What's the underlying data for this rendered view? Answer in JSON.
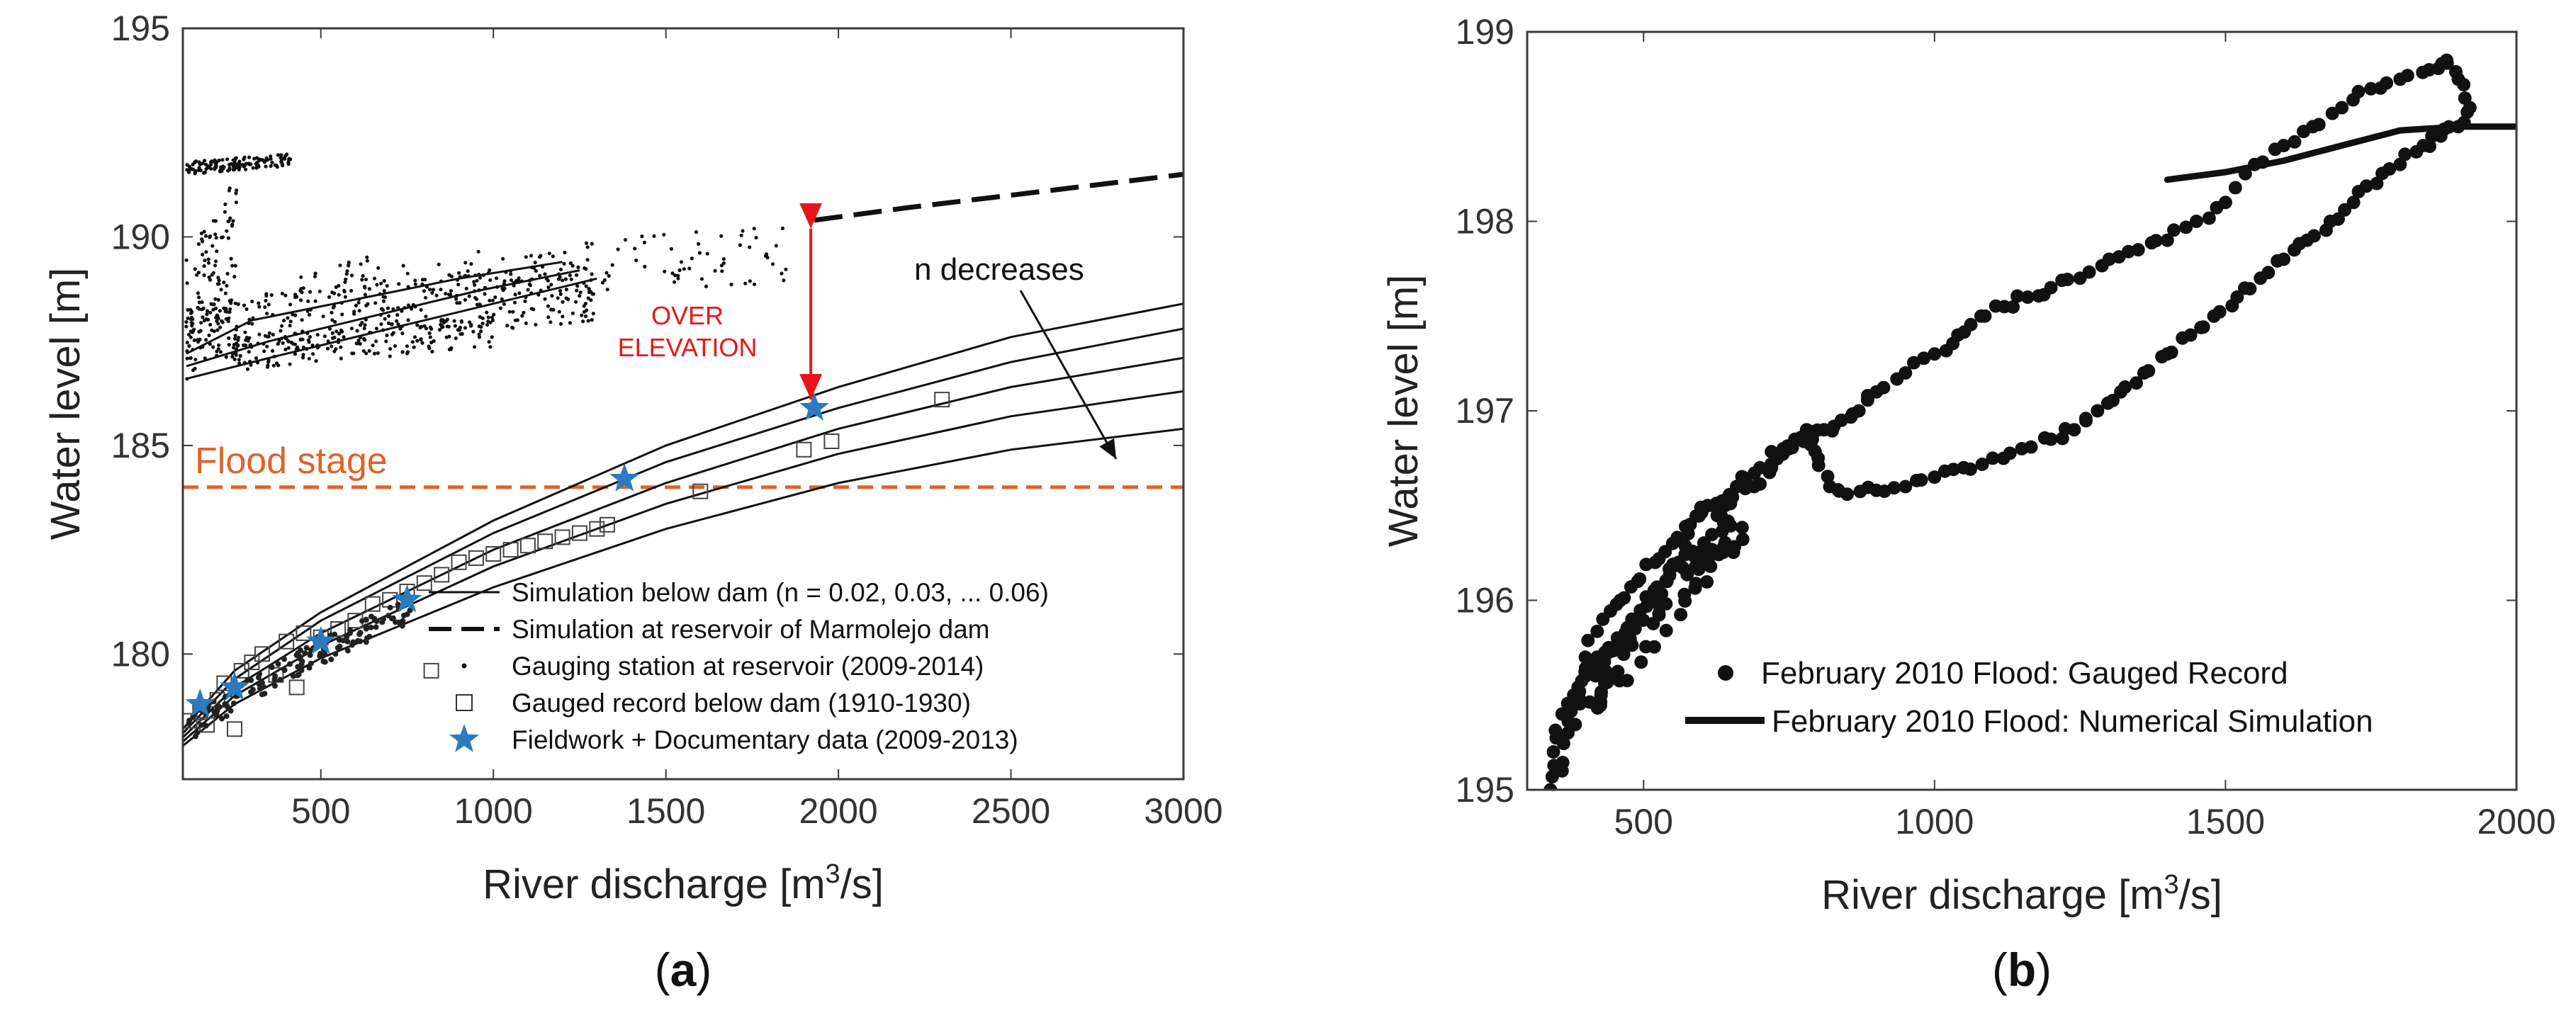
{
  "figure": {
    "panel_a_label_open": "(",
    "panel_a_label_letter": "a",
    "panel_a_label_close": ")",
    "panel_b_label_open": "(",
    "panel_b_label_letter": "b",
    "panel_b_label_close": ")"
  },
  "colors": {
    "flood_stage": "#e0622a",
    "overelevation": "#e8161b",
    "fieldwork_star": "#2a7bbf",
    "lines": "#111111",
    "axis": "#3a3a3a"
  },
  "chart_data": [
    {
      "type": "scatter",
      "title": "",
      "xlabel_prefix": "River discharge [m",
      "xlabel_sup": "3",
      "xlabel_suffix": "/s]",
      "ylabel": "Water level [m]",
      "xlim": [
        100,
        3000
      ],
      "ylim": [
        177,
        195
      ],
      "xticks": [
        500,
        1000,
        1500,
        2000,
        2500,
        3000
      ],
      "xtick_labels": [
        "500",
        "1000",
        "1500",
        "2000",
        "2500",
        "3000"
      ],
      "yticks": [
        180,
        185,
        190,
        195
      ],
      "ytick_labels": [
        "180",
        "185",
        "190",
        "195"
      ],
      "flood_stage": {
        "value": 184,
        "label": "Flood stage"
      },
      "annotations": {
        "overelevation_line1": "OVER",
        "overelevation_line2": "ELEVATION",
        "overelevation_x": 1920,
        "overelevation_from": 190.3,
        "overelevation_to": 186.0,
        "n_decreases": "n decreases"
      },
      "simulation_below_dam": [
        {
          "n": 0.02,
          "points": [
            [
              100,
              178.2
            ],
            [
              250,
              179.6
            ],
            [
              500,
              181.0
            ],
            [
              1000,
              183.2
            ],
            [
              1500,
              185.0
            ],
            [
              2000,
              186.4
            ],
            [
              2500,
              187.6
            ],
            [
              3000,
              188.4
            ]
          ]
        },
        {
          "n": 0.03,
          "points": [
            [
              100,
              178.1
            ],
            [
              250,
              179.4
            ],
            [
              500,
              180.8
            ],
            [
              1000,
              182.9
            ],
            [
              1500,
              184.6
            ],
            [
              2000,
              185.9
            ],
            [
              2500,
              187.0
            ],
            [
              3000,
              187.8
            ]
          ]
        },
        {
          "n": 0.04,
          "points": [
            [
              100,
              178.0
            ],
            [
              250,
              179.2
            ],
            [
              500,
              180.5
            ],
            [
              1000,
              182.5
            ],
            [
              1500,
              184.1
            ],
            [
              2000,
              185.4
            ],
            [
              2500,
              186.4
            ],
            [
              3000,
              187.1
            ]
          ]
        },
        {
          "n": 0.05,
          "points": [
            [
              100,
              177.9
            ],
            [
              250,
              179.0
            ],
            [
              500,
              180.2
            ],
            [
              1000,
              182.1
            ],
            [
              1500,
              183.6
            ],
            [
              2000,
              184.8
            ],
            [
              2500,
              185.7
            ],
            [
              3000,
              186.3
            ]
          ]
        },
        {
          "n": 0.06,
          "points": [
            [
              100,
              177.8
            ],
            [
              250,
              178.8
            ],
            [
              500,
              179.9
            ],
            [
              1000,
              181.6
            ],
            [
              1500,
              183.0
            ],
            [
              2000,
              184.1
            ],
            [
              2500,
              184.9
            ],
            [
              3000,
              185.4
            ]
          ]
        }
      ],
      "simulation_reservoir": [
        [
          1930,
          190.4
        ],
        [
          2200,
          190.7
        ],
        [
          2500,
          191.0
        ],
        [
          2800,
          191.3
        ],
        [
          3000,
          191.5
        ]
      ],
      "gauged_record_below_dam": [
        [
          120,
          178.4
        ],
        [
          150,
          178.6
        ],
        [
          170,
          178.3
        ],
        [
          200,
          178.9
        ],
        [
          220,
          179.3
        ],
        [
          250,
          178.2
        ],
        [
          270,
          179.6
        ],
        [
          300,
          179.8
        ],
        [
          330,
          180.0
        ],
        [
          370,
          179.5
        ],
        [
          400,
          180.3
        ],
        [
          430,
          179.2
        ],
        [
          450,
          180.5
        ],
        [
          500,
          180.4
        ],
        [
          550,
          180.6
        ],
        [
          600,
          180.8
        ],
        [
          650,
          181.2
        ],
        [
          700,
          181.3
        ],
        [
          750,
          181.5
        ],
        [
          800,
          181.7
        ],
        [
          820,
          179.6
        ],
        [
          850,
          181.9
        ],
        [
          900,
          182.2
        ],
        [
          950,
          182.3
        ],
        [
          1000,
          182.4
        ],
        [
          1050,
          182.5
        ],
        [
          1100,
          182.6
        ],
        [
          1150,
          182.7
        ],
        [
          1200,
          182.8
        ],
        [
          1250,
          182.9
        ],
        [
          1300,
          183.0
        ],
        [
          1330,
          183.1
        ],
        [
          1600,
          183.9
        ],
        [
          1900,
          184.9
        ],
        [
          1980,
          185.1
        ],
        [
          2300,
          186.1
        ]
      ],
      "fieldwork_documentary": [
        [
          150,
          178.8
        ],
        [
          250,
          179.2
        ],
        [
          500,
          180.3
        ],
        [
          750,
          181.3
        ],
        [
          1380,
          184.2
        ],
        [
          1930,
          185.9
        ]
      ],
      "legend": [
        {
          "label": "Simulation below dam (n = 0.02, 0.03, ... 0.06)",
          "style": "solid-line"
        },
        {
          "label": "Simulation at reservoir of Marmolejo dam",
          "style": "dashed-line"
        },
        {
          "label": "Gauging station at reservoir (2009-2014)",
          "style": "dot"
        },
        {
          "label": "Gauged record below dam (1910-1930)",
          "style": "open-square"
        },
        {
          "label": "Fieldwork + Documentary data (2009-2013)",
          "style": "blue-star"
        }
      ]
    },
    {
      "type": "scatter",
      "title": "",
      "xlabel_prefix": "River discharge [m",
      "xlabel_sup": "3",
      "xlabel_suffix": "/s]",
      "ylabel": "Water level [m]",
      "xlim": [
        300,
        2000
      ],
      "ylim": [
        195,
        199
      ],
      "xticks": [
        500,
        1000,
        1500,
        2000
      ],
      "xtick_labels": [
        "500",
        "1000",
        "1500",
        "2000"
      ],
      "yticks": [
        195,
        196,
        197,
        198,
        199
      ],
      "ytick_labels": [
        "195",
        "196",
        "197",
        "198",
        "199"
      ],
      "gauged_record": [
        [
          340,
          195.0
        ],
        [
          345,
          195.2
        ],
        [
          360,
          195.4
        ],
        [
          380,
          195.5
        ],
        [
          400,
          195.7
        ],
        [
          430,
          195.9
        ],
        [
          460,
          196.0
        ],
        [
          490,
          196.1
        ],
        [
          520,
          196.2
        ],
        [
          550,
          196.3
        ],
        [
          580,
          196.4
        ],
        [
          610,
          196.5
        ],
        [
          640,
          196.5
        ],
        [
          660,
          196.6
        ],
        [
          690,
          196.6
        ],
        [
          720,
          196.7
        ],
        [
          750,
          196.8
        ],
        [
          780,
          196.85
        ],
        [
          810,
          196.9
        ],
        [
          840,
          196.95
        ],
        [
          870,
          197.0
        ],
        [
          900,
          197.1
        ],
        [
          950,
          197.2
        ],
        [
          1000,
          197.3
        ],
        [
          1040,
          197.4
        ],
        [
          1080,
          197.5
        ],
        [
          1120,
          197.55
        ],
        [
          1160,
          197.6
        ],
        [
          1200,
          197.65
        ],
        [
          1250,
          197.7
        ],
        [
          1300,
          197.8
        ],
        [
          1350,
          197.85
        ],
        [
          1400,
          197.9
        ],
        [
          1450,
          198.0
        ],
        [
          1500,
          198.1
        ],
        [
          1550,
          198.3
        ],
        [
          1600,
          198.4
        ],
        [
          1650,
          198.5
        ],
        [
          1700,
          198.6
        ],
        [
          1750,
          198.7
        ],
        [
          1800,
          198.75
        ],
        [
          1850,
          198.8
        ],
        [
          1880,
          198.85
        ],
        [
          1900,
          198.75
        ],
        [
          1920,
          198.6
        ],
        [
          1900,
          198.5
        ],
        [
          1870,
          198.45
        ],
        [
          1840,
          198.4
        ],
        [
          1800,
          198.3
        ],
        [
          1760,
          198.2
        ],
        [
          1720,
          198.1
        ],
        [
          1680,
          198.0
        ],
        [
          1640,
          197.9
        ],
        [
          1600,
          197.8
        ],
        [
          1560,
          197.7
        ],
        [
          1520,
          197.6
        ],
        [
          1480,
          197.5
        ],
        [
          1440,
          197.4
        ],
        [
          1400,
          197.3
        ],
        [
          1360,
          197.2
        ],
        [
          1320,
          197.1
        ],
        [
          1280,
          197.0
        ],
        [
          1240,
          196.9
        ],
        [
          1200,
          196.85
        ],
        [
          1150,
          196.8
        ],
        [
          1100,
          196.75
        ],
        [
          1050,
          196.7
        ],
        [
          1000,
          196.65
        ],
        [
          950,
          196.6
        ],
        [
          900,
          196.58
        ],
        [
          850,
          196.56
        ],
        [
          820,
          196.6
        ],
        [
          800,
          196.75
        ],
        [
          790,
          196.85
        ],
        [
          780,
          196.9
        ],
        [
          760,
          196.85
        ],
        [
          740,
          196.8
        ],
        [
          700,
          196.7
        ],
        [
          660,
          196.6
        ],
        [
          620,
          196.5
        ],
        [
          580,
          196.4
        ],
        [
          560,
          196.2
        ],
        [
          540,
          196.1
        ],
        [
          510,
          196.0
        ],
        [
          480,
          195.9
        ],
        [
          460,
          195.8
        ],
        [
          440,
          195.75
        ],
        [
          420,
          195.7
        ],
        [
          400,
          195.6
        ],
        [
          380,
          195.45
        ],
        [
          370,
          195.3
        ],
        [
          360,
          195.1
        ]
      ],
      "numerical_simulation": [
        [
          1400,
          198.22
        ],
        [
          1500,
          198.26
        ],
        [
          1600,
          198.32
        ],
        [
          1700,
          198.4
        ],
        [
          1800,
          198.48
        ],
        [
          1900,
          198.5
        ],
        [
          2000,
          198.5
        ]
      ],
      "legend": [
        {
          "label": "February 2010 Flood: Gauged Record",
          "style": "dot"
        },
        {
          "label": "February 2010 Flood: Numerical Simulation",
          "style": "thick-line"
        }
      ]
    }
  ]
}
